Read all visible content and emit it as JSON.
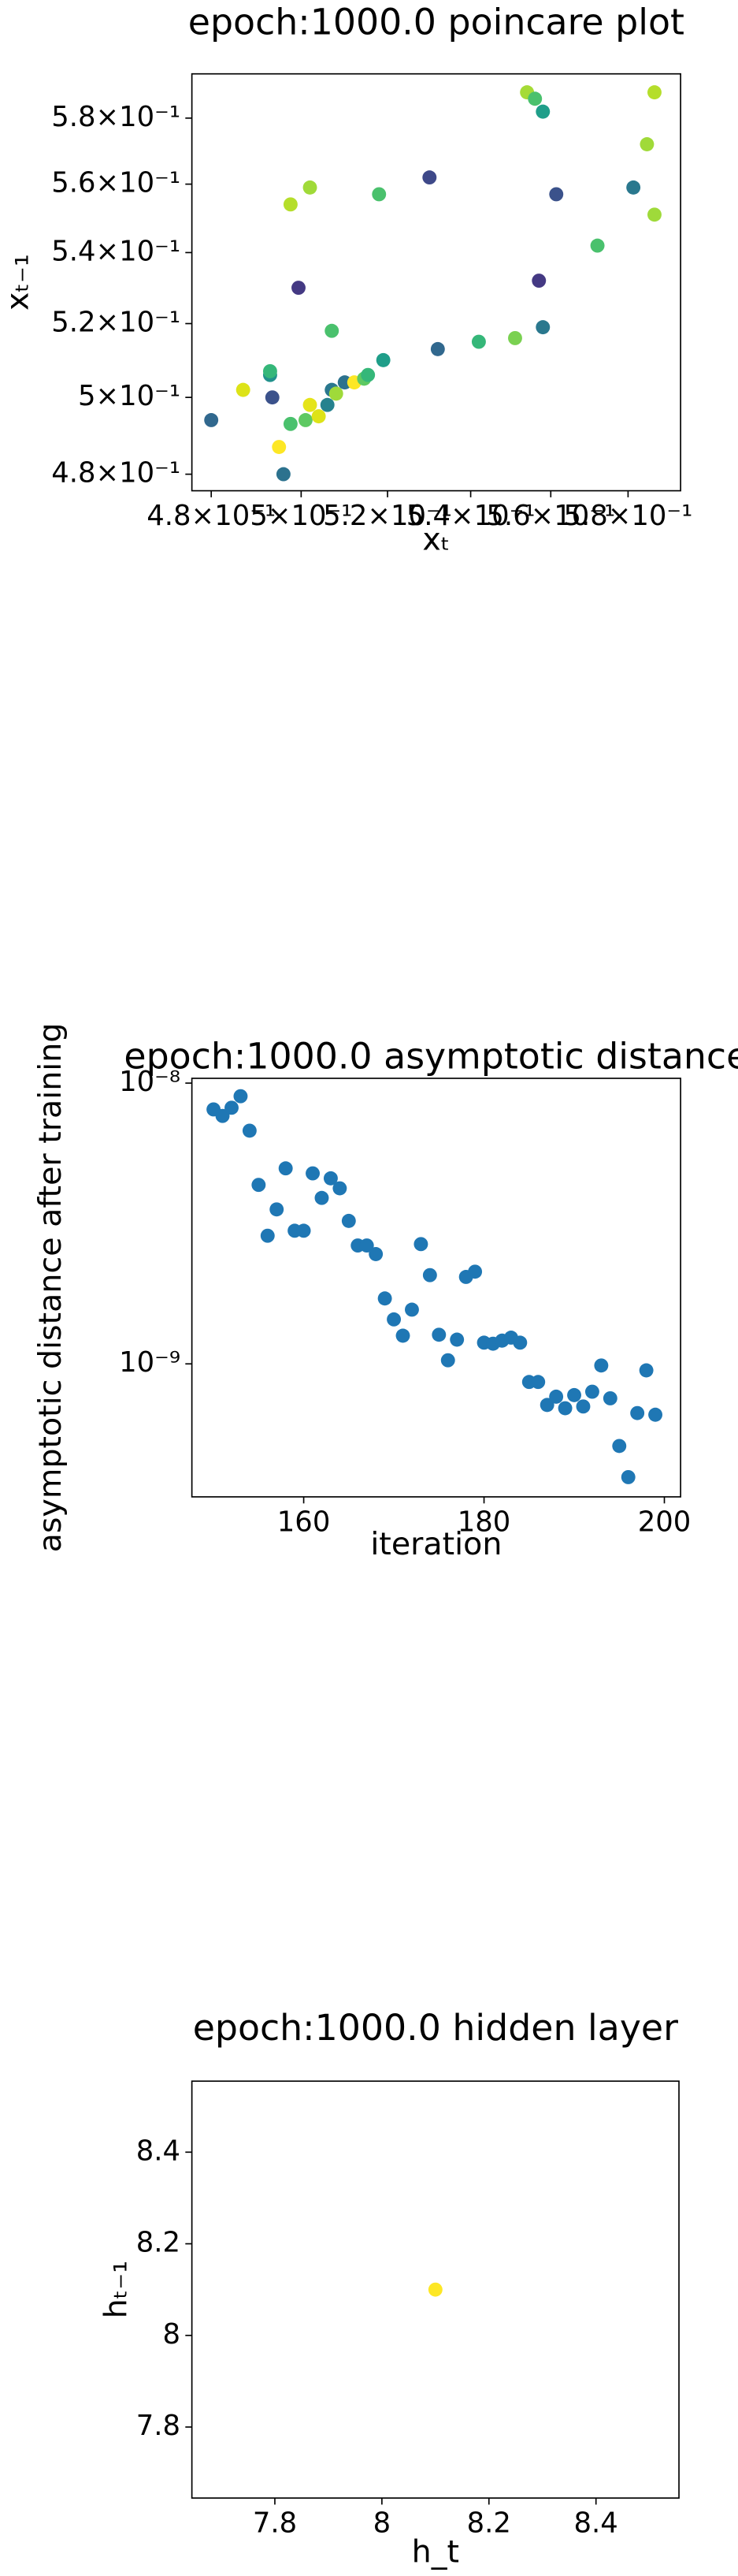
{
  "chart_data": [
    {
      "type": "scatter",
      "title": "epoch:1000.0 poincare plot",
      "xlabel": "xₜ",
      "ylabel": "xₜ₋₁",
      "xscale": "log",
      "yscale": "log",
      "xlim": [
        0.4758,
        0.594
      ],
      "ylim": [
        0.4758,
        0.5938
      ],
      "xticks": [
        {
          "value": 0.48,
          "label": "4.8×10⁻¹"
        },
        {
          "value": 0.5,
          "label": "5×10⁻¹"
        },
        {
          "value": 0.52,
          "label": "5.2×10⁻¹"
        },
        {
          "value": 0.54,
          "label": "5.4×10⁻¹"
        },
        {
          "value": 0.56,
          "label": "5.6×10⁻¹"
        },
        {
          "value": 0.58,
          "label": "5.8×10⁻¹"
        }
      ],
      "yticks": [
        {
          "value": 0.48,
          "label": "4.8×10⁻¹"
        },
        {
          "value": 0.5,
          "label": "5×10⁻¹"
        },
        {
          "value": 0.52,
          "label": "5.2×10⁻¹"
        },
        {
          "value": 0.54,
          "label": "5.4×10⁻¹"
        },
        {
          "value": 0.56,
          "label": "5.6×10⁻¹"
        },
        {
          "value": 0.58,
          "label": "5.8×10⁻¹"
        }
      ],
      "x": [
        0.48,
        0.4935,
        0.487,
        0.493,
        0.493,
        0.4994,
        0.502,
        0.4976,
        0.4976,
        0.501,
        0.495,
        0.496,
        0.502,
        0.504,
        0.506,
        0.507,
        0.508,
        0.507,
        0.51,
        0.5122,
        0.5145,
        0.5154,
        0.518,
        0.519,
        0.53,
        0.532,
        0.542,
        0.551,
        0.554,
        0.556,
        0.558,
        0.557,
        0.558,
        0.5614,
        0.572,
        0.5814,
        0.585,
        0.587,
        0.587
      ],
      "y": [
        0.494,
        0.5,
        0.502,
        0.506,
        0.507,
        0.53,
        0.559,
        0.554,
        0.493,
        0.494,
        0.487,
        0.48,
        0.498,
        0.495,
        0.498,
        0.502,
        0.501,
        0.518,
        0.504,
        0.504,
        0.505,
        0.506,
        0.557,
        0.51,
        0.562,
        0.513,
        0.515,
        0.516,
        0.588,
        0.586,
        0.582,
        0.532,
        0.519,
        0.557,
        0.542,
        0.559,
        0.572,
        0.588,
        0.551
      ],
      "colors": [
        "#31688e",
        "#3b528b",
        "#dde318",
        "#21918c",
        "#35b779",
        "#443983",
        "#a0da39",
        "#b5de2b",
        "#4ac16d",
        "#5ec962",
        "#fde725",
        "#2c728e",
        "#e5e419",
        "#dde318",
        "#26828e",
        "#2a788e",
        "#9fda3a",
        "#4ac16d",
        "#2c728e",
        "#fde725",
        "#5ec962",
        "#35b779",
        "#4ac16d",
        "#1f9e89",
        "#3e4989",
        "#31688e",
        "#35b779",
        "#7ad151",
        "#a5db36",
        "#4ac16d",
        "#1f9e89",
        "#443983",
        "#2a788e",
        "#3b528b",
        "#4ac16d",
        "#2a788e",
        "#a0da39",
        "#b5de2b",
        "#9fda3a"
      ]
    },
    {
      "type": "scatter",
      "title": "epoch:1000.0 asymptotic distance",
      "xlabel": "iteration",
      "ylabel": "asymptotic distance after training",
      "yscale": "log",
      "color": "#1f77b4",
      "xlim": [
        147.6,
        201.8
      ],
      "ylim": [
        3.36e-10,
        1.04e-08
      ],
      "xticks": [
        160,
        180,
        200
      ],
      "yticks": [
        {
          "value": 1e-09,
          "label": "10⁻⁹"
        },
        {
          "value": 1e-08,
          "label": "10⁻⁸"
        }
      ],
      "x": [
        150,
        151,
        152,
        153,
        154,
        155,
        156,
        157,
        158,
        159,
        160,
        161,
        162,
        163,
        164,
        165,
        166,
        167,
        168,
        169,
        170,
        171,
        172,
        173,
        174,
        175,
        176,
        177,
        178,
        179,
        180,
        181,
        182,
        183,
        184,
        185,
        186,
        187,
        188,
        189,
        190,
        191,
        192,
        193,
        194,
        195,
        196,
        197,
        198,
        199
      ],
      "y": [
        8.06e-09,
        7.64e-09,
        8.17e-09,
        8.98e-09,
        6.77e-09,
        4.34e-09,
        2.86e-09,
        3.55e-09,
        4.97e-09,
        2.98e-09,
        2.98e-09,
        4.77e-09,
        3.9e-09,
        4.58e-09,
        4.22e-09,
        3.23e-09,
        2.64e-09,
        2.64e-09,
        2.46e-09,
        1.71e-09,
        1.44e-09,
        1.26e-09,
        1.56e-09,
        2.67e-09,
        2.07e-09,
        1.27e-09,
        1.03e-09,
        1.22e-09,
        2.04e-09,
        2.13e-09,
        1.19e-09,
        1.18e-09,
        1.21e-09,
        1.24e-09,
        1.19e-09,
        8.62e-10,
        8.62e-10,
        7.14e-10,
        7.64e-10,
        6.95e-10,
        7.74e-10,
        7.05e-10,
        7.96e-10,
        9.87e-10,
        7.54e-10,
        5.1e-10,
        3.95e-10,
        6.68e-10,
        9.48e-10,
        6.59e-10
      ]
    },
    {
      "type": "scatter",
      "title": "epoch:1000.0 hidden layer",
      "xlabel": "h_t",
      "ylabel": "hₜ₋₁",
      "color": "#fde725",
      "xlim": [
        7.645,
        8.555
      ],
      "ylim": [
        7.645,
        8.555
      ],
      "xticks": [
        7.8,
        8.0,
        8.2,
        8.4
      ],
      "yticks": [
        7.8,
        8.0,
        8.2,
        8.4
      ],
      "x": [
        8.1
      ],
      "y": [
        8.1
      ]
    }
  ]
}
